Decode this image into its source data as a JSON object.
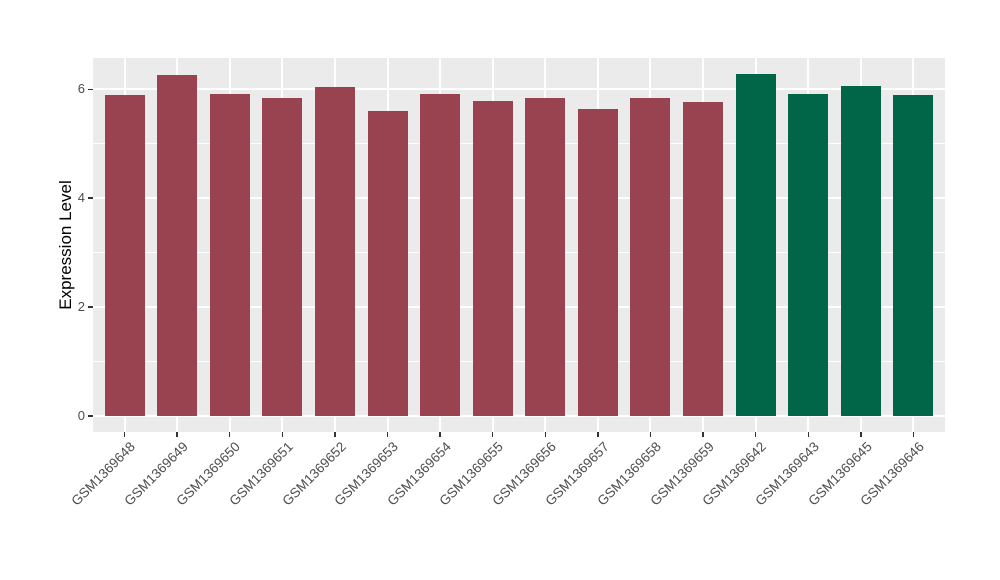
{
  "chart_data": {
    "type": "bar",
    "title": "",
    "xlabel": "",
    "ylabel": "Expression Level",
    "categories": [
      "GSM1369648",
      "GSM1369649",
      "GSM1369650",
      "GSM1369651",
      "GSM1369652",
      "GSM1369653",
      "GSM1369654",
      "GSM1369655",
      "GSM1369656",
      "GSM1369657",
      "GSM1369658",
      "GSM1369659",
      "GSM1369642",
      "GSM1369643",
      "GSM1369645",
      "GSM1369646"
    ],
    "values": [
      5.9,
      6.26,
      5.92,
      5.84,
      6.05,
      5.6,
      5.91,
      5.79,
      5.84,
      5.64,
      5.84,
      5.77,
      6.28,
      5.91,
      6.06,
      5.9
    ],
    "bars": [
      {
        "label": "GSM1369648",
        "value": 5.9,
        "color": "#9A4350",
        "group": "group1"
      },
      {
        "label": "GSM1369649",
        "value": 6.26,
        "color": "#9A4350",
        "group": "group1"
      },
      {
        "label": "GSM1369650",
        "value": 5.92,
        "color": "#9A4350",
        "group": "group1"
      },
      {
        "label": "GSM1369651",
        "value": 5.84,
        "color": "#9A4350",
        "group": "group1"
      },
      {
        "label": "GSM1369652",
        "value": 6.05,
        "color": "#9A4350",
        "group": "group1"
      },
      {
        "label": "GSM1369653",
        "value": 5.6,
        "color": "#9A4350",
        "group": "group1"
      },
      {
        "label": "GSM1369654",
        "value": 5.91,
        "color": "#9A4350",
        "group": "group1"
      },
      {
        "label": "GSM1369655",
        "value": 5.79,
        "color": "#9A4350",
        "group": "group1"
      },
      {
        "label": "GSM1369656",
        "value": 5.84,
        "color": "#9A4350",
        "group": "group1"
      },
      {
        "label": "GSM1369657",
        "value": 5.64,
        "color": "#9A4350",
        "group": "group1"
      },
      {
        "label": "GSM1369658",
        "value": 5.84,
        "color": "#9A4350",
        "group": "group1"
      },
      {
        "label": "GSM1369659",
        "value": 5.77,
        "color": "#9A4350",
        "group": "group1"
      },
      {
        "label": "GSM1369642",
        "value": 6.28,
        "color": "#006647",
        "group": "group2"
      },
      {
        "label": "GSM1369643",
        "value": 5.91,
        "color": "#006647",
        "group": "group2"
      },
      {
        "label": "GSM1369645",
        "value": 6.06,
        "color": "#006647",
        "group": "group2"
      },
      {
        "label": "GSM1369646",
        "value": 5.9,
        "color": "#006647",
        "group": "group2"
      }
    ],
    "yticks": [
      0,
      2,
      4,
      6
    ],
    "yticks_minor": [
      1,
      3,
      5
    ],
    "ylim_display": [
      -0.295,
      6.575
    ],
    "x_tick_rotation": 45,
    "grid": true,
    "legend": false,
    "colors": {
      "bar_red": "#9A4350",
      "bar_green": "#006647",
      "panel_bg": "#EBEBEB",
      "grid": "#FFFFFF",
      "tick": "#333333",
      "tick_label": "#4D4D4D",
      "axis_title": "#000000",
      "figure_bg": "#FFFFFF"
    }
  }
}
